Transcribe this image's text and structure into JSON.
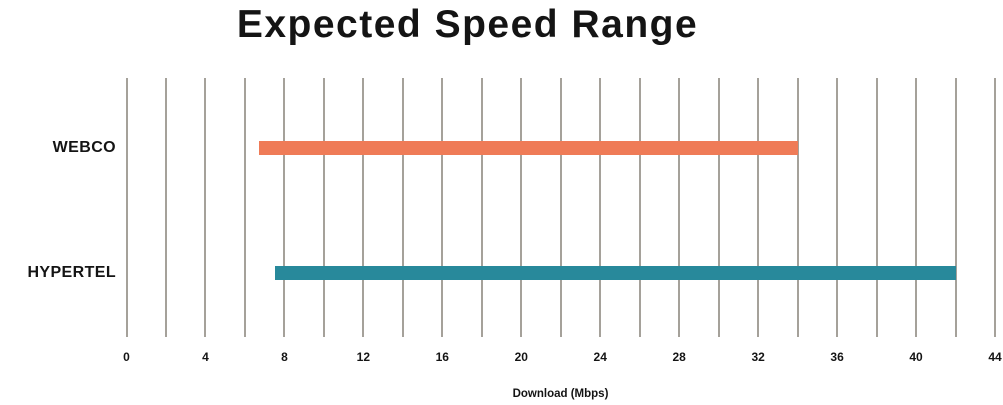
{
  "title": "Expected Speed Range",
  "chart_data": {
    "type": "bar",
    "subtype": "horizontal-range",
    "title": "Expected Speed Range",
    "categories": [
      "WEBCO",
      "HYPERTEL"
    ],
    "series": [
      {
        "name": "WEBCO",
        "start": 6.7,
        "end": 34,
        "color": "#EF7B57"
      },
      {
        "name": "HYPERTEL",
        "start": 7.5,
        "end": 42,
        "color": "#28899B"
      }
    ],
    "xlabel": "Download (Mbps)",
    "xlim": [
      0,
      44
    ],
    "x_ticks": [
      0,
      4,
      8,
      12,
      16,
      20,
      24,
      28,
      32,
      36,
      40,
      44
    ],
    "gridline_step": 2,
    "grid": "vertical",
    "legend": "none",
    "colors": {
      "gridline": "#A5A19A",
      "text": "#141414",
      "background": "#FFFFFF"
    }
  }
}
